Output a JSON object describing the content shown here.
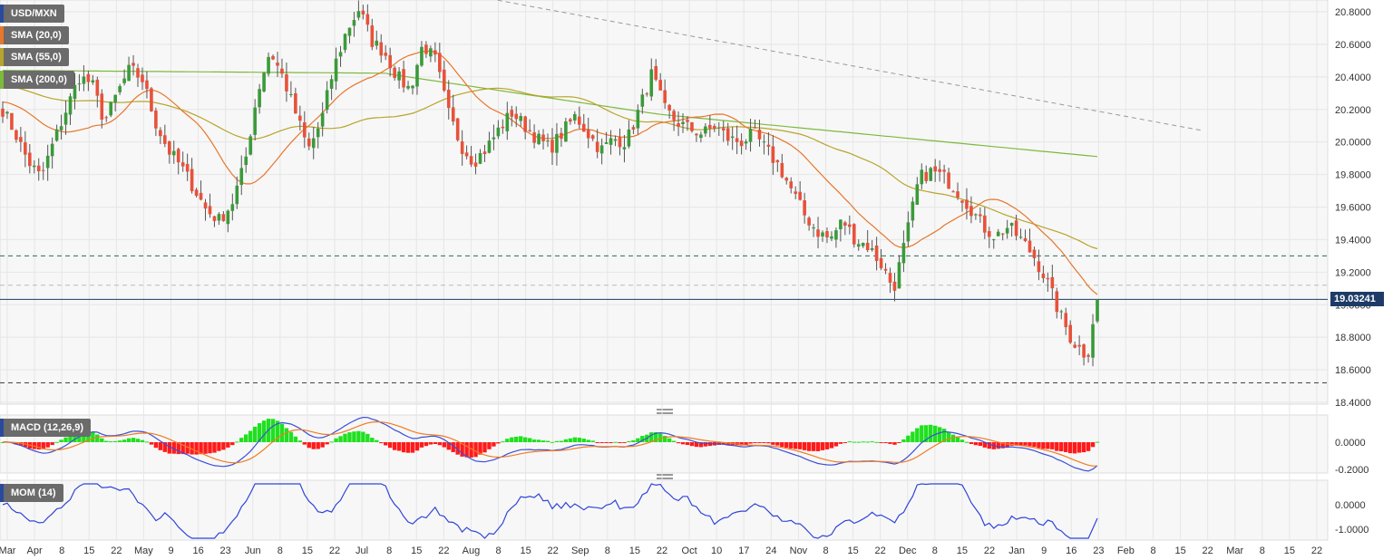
{
  "legend": {
    "symbol": "USD/MXN",
    "sma20": "SMA (20,0)",
    "sma55": "SMA (55,0)",
    "sma200": "SMA (200,0)",
    "macd": "MACD (12,26,9)",
    "mom": "MOM (14)"
  },
  "colors": {
    "up": "#3a9a3a",
    "down": "#e8513a",
    "sma20": "#e8762b",
    "sma55": "#b8a42a",
    "sma200": "#7cba3c",
    "macd_line": "#3b4fd8",
    "signal_line": "#f07c22",
    "hist_pos": "#1fe01f",
    "hist_neg": "#ff1a1a",
    "mom_line": "#2f45d8",
    "price_line": "#1d3b66"
  },
  "price_tag": "19.03241",
  "chart_data": {
    "type": "candlestick",
    "price_axis": {
      "ticks": [
        "20.8000",
        "20.6000",
        "20.4000",
        "20.2000",
        "20.0000",
        "19.8000",
        "19.6000",
        "19.4000",
        "19.2000",
        "19.0000",
        "18.8000",
        "18.6000",
        "18.4000"
      ]
    },
    "macd_axis": {
      "ticks": [
        "0.0000",
        "-0.2000"
      ]
    },
    "mom_axis": {
      "ticks": [
        "0.0000",
        "-1.0000"
      ]
    },
    "x_labels": [
      "Mar",
      "Apr",
      "8",
      "15",
      "22",
      "May",
      "9",
      "16",
      "23",
      "Jun",
      "8",
      "15",
      "22",
      "Jul",
      "8",
      "15",
      "22",
      "Aug",
      "8",
      "15",
      "22",
      "Sep",
      "8",
      "15",
      "22",
      "Oct",
      "10",
      "17",
      "24",
      "Nov",
      "8",
      "15",
      "22",
      "Dec",
      "8",
      "15",
      "22",
      "Jan",
      "9",
      "16",
      "23",
      "Feb",
      "8",
      "15",
      "22",
      "Mar",
      "8",
      "15",
      "22"
    ],
    "current_price": 19.03241,
    "horizontal_levels": [
      19.3,
      19.12,
      18.52
    ],
    "trendline": {
      "from": 20.88,
      "to": 20.07
    },
    "close_path": [
      20.2,
      20.05,
      19.88,
      19.78,
      20.0,
      20.2,
      20.4,
      20.36,
      20.12,
      20.3,
      20.45,
      20.38,
      20.12,
      19.95,
      19.85,
      19.72,
      19.58,
      19.52,
      19.62,
      19.86,
      20.3,
      20.56,
      20.4,
      20.18,
      19.95,
      20.12,
      20.45,
      20.68,
      20.82,
      20.62,
      20.55,
      20.4,
      20.32,
      20.6,
      20.5,
      20.18,
      19.98,
      19.88,
      19.96,
      20.08,
      20.18,
      20.1,
      20.02,
      19.96,
      20.06,
      20.16,
      20.05,
      19.95,
      20.02,
      20.0,
      20.2,
      20.42,
      20.2,
      20.12,
      20.08,
      20.05,
      20.1,
      20.02,
      20.0,
      20.05,
      19.95,
      19.85,
      19.7,
      19.55,
      19.45,
      19.4,
      19.52,
      19.4,
      19.36,
      19.25,
      19.1,
      19.42,
      19.78,
      19.82,
      19.78,
      19.7,
      19.6,
      19.48,
      19.42,
      19.48,
      19.4,
      19.3,
      19.15,
      18.95,
      18.78,
      18.7,
      19.03
    ]
  }
}
